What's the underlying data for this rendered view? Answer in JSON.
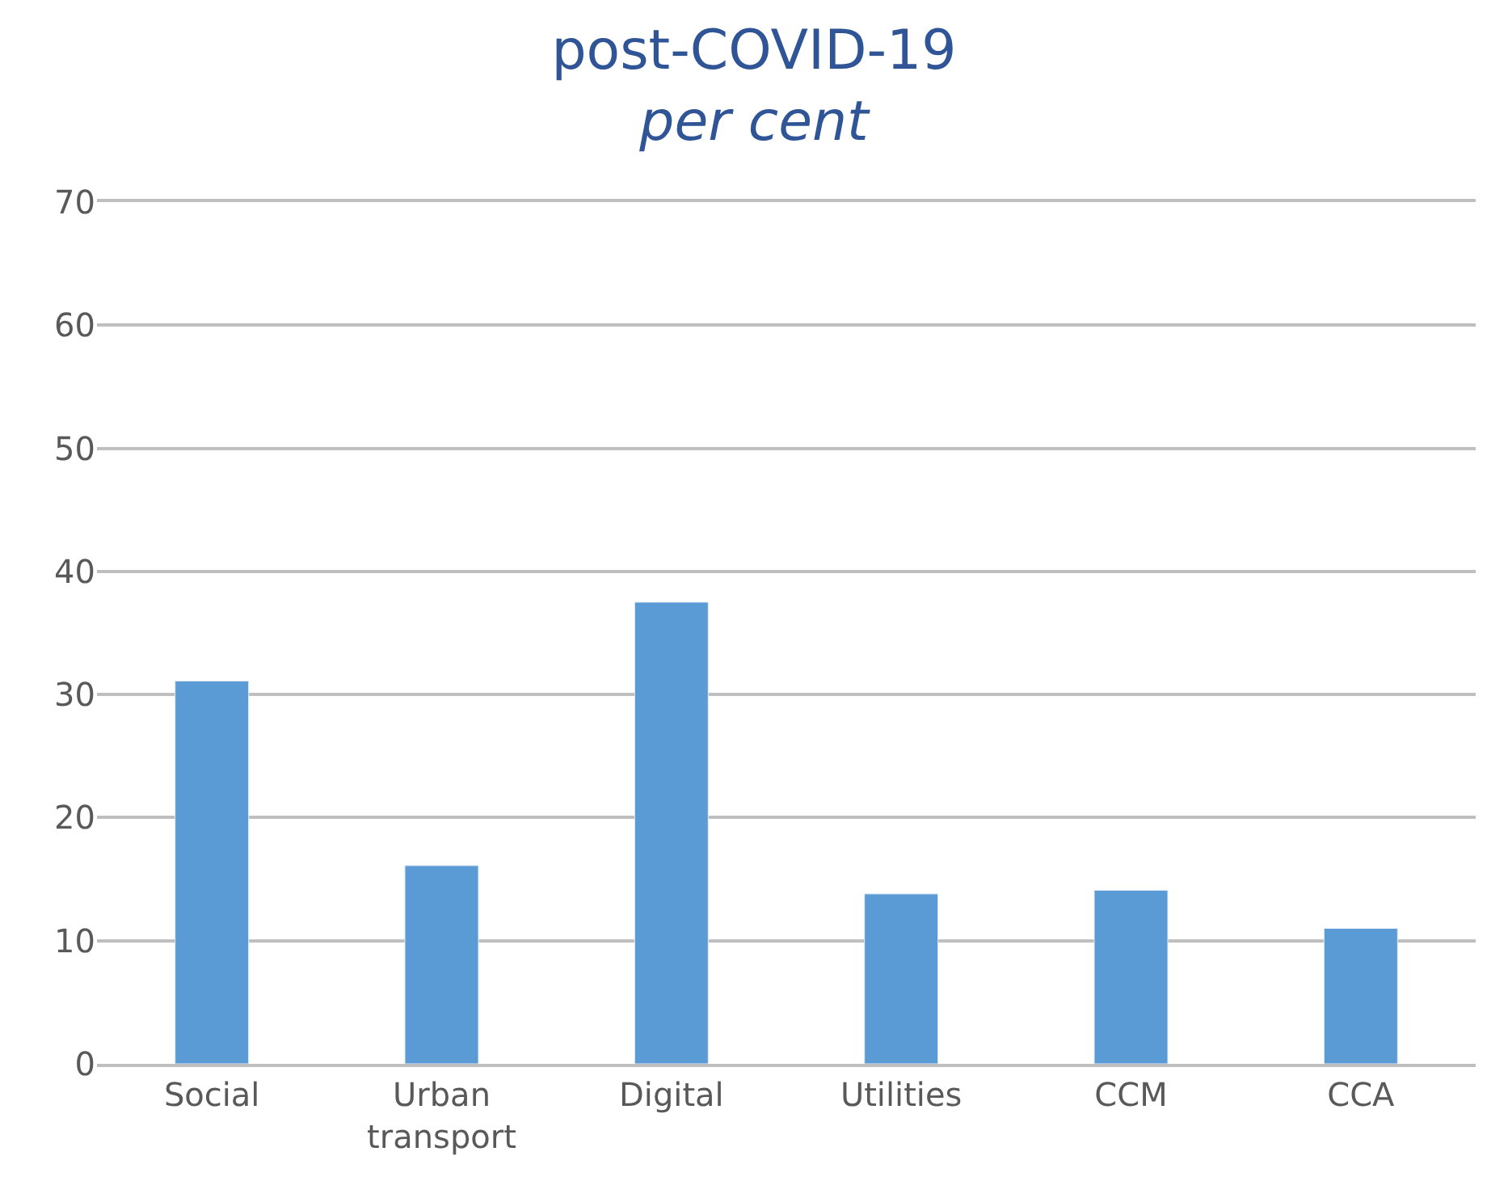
{
  "chart_data": {
    "type": "bar",
    "title": "post-COVID-19",
    "subtitle": "per cent",
    "categories": [
      "Social",
      "Urban transport",
      "Digital",
      "Utilities",
      "CCM",
      "CCA"
    ],
    "values": [
      31.1,
      16.1,
      37.5,
      13.8,
      14.1,
      11.0
    ],
    "color": "#5b9bd5",
    "ylim": [
      0,
      70
    ],
    "yticks": [
      0,
      10,
      20,
      30,
      40,
      50,
      60,
      70
    ],
    "grid": "y",
    "legend": false
  }
}
